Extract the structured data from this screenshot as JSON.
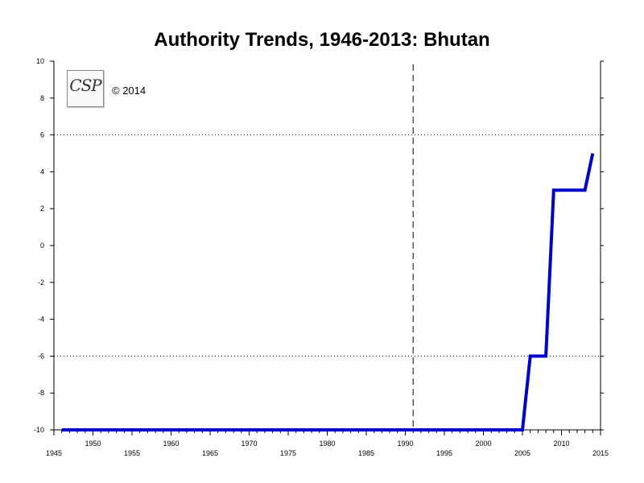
{
  "chart_data": {
    "type": "line",
    "title": "Authority Trends, 1946-2013: Bhutan",
    "xlabel": "",
    "ylabel": "",
    "xlim": [
      1945,
      2015
    ],
    "ylim": [
      -10,
      10
    ],
    "x_ticks_lower": [
      1945,
      1955,
      1965,
      1975,
      1985,
      1995,
      2005,
      2015
    ],
    "x_ticks_upper": [
      1950,
      1960,
      1970,
      1980,
      1990,
      2000,
      2010
    ],
    "y_ticks": [
      10,
      8,
      6,
      4,
      2,
      0,
      -2,
      -4,
      -6,
      -8,
      -10
    ],
    "reference_lines": {
      "horizontal_dotted": [
        6,
        -6
      ],
      "vertical_dashed": [
        1991
      ]
    },
    "grid": false,
    "series": [
      {
        "color": "#0000cc",
        "points": [
          [
            1946,
            -10
          ],
          [
            2005,
            -10
          ],
          [
            2006,
            -6
          ],
          [
            2008,
            -6
          ],
          [
            2009,
            3
          ],
          [
            2013,
            3
          ],
          [
            2014,
            5
          ]
        ]
      }
    ]
  },
  "logo": {
    "text": "CSP"
  },
  "copyright": "© 2014"
}
